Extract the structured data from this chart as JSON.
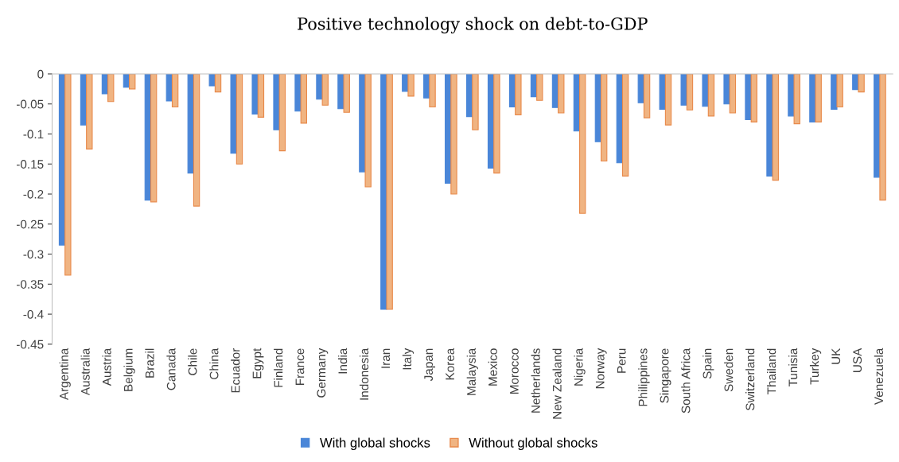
{
  "chart_data": {
    "type": "bar",
    "title": "Positive technology shock on debt-to-GDP",
    "categories": [
      "Argentina",
      "Australia",
      "Austria",
      "Belgium",
      "Brazil",
      "Canada",
      "Chile",
      "China",
      "Ecuador",
      "Egypt",
      "Finland",
      "France",
      "Germany",
      "India",
      "Indonesia",
      "Iran",
      "Italy",
      "Japan",
      "Korea",
      "Malaysia",
      "Mexico",
      "Morocco",
      "Netherlands",
      "New Zealand",
      "Nigeria",
      "Norway",
      "Peru",
      "Philippines",
      "Singapore",
      "South Africa",
      "Spain",
      "Sweden",
      "Switzerland",
      "Thailand",
      "Tunisia",
      "Turkey",
      "UK",
      "USA",
      "Venezuela"
    ],
    "series": [
      {
        "name": "With global shocks",
        "color": "#4a86d8",
        "values": [
          -0.285,
          -0.085,
          -0.033,
          -0.022,
          -0.21,
          -0.045,
          -0.165,
          -0.02,
          -0.132,
          -0.067,
          -0.093,
          -0.062,
          -0.042,
          -0.058,
          -0.163,
          -0.392,
          -0.029,
          -0.04,
          -0.182,
          -0.071,
          -0.157,
          -0.055,
          -0.038,
          -0.056,
          -0.095,
          -0.113,
          -0.148,
          -0.048,
          -0.059,
          -0.052,
          -0.054,
          -0.05,
          -0.076,
          -0.17,
          -0.07,
          -0.08,
          -0.059,
          -0.026,
          -0.172
        ]
      },
      {
        "name": "Without global shocks",
        "color": "#f0b482",
        "values": [
          -0.335,
          -0.125,
          -0.046,
          -0.025,
          -0.213,
          -0.055,
          -0.22,
          -0.03,
          -0.15,
          -0.072,
          -0.128,
          -0.082,
          -0.052,
          -0.064,
          -0.188,
          -0.392,
          -0.037,
          -0.055,
          -0.2,
          -0.093,
          -0.165,
          -0.068,
          -0.044,
          -0.065,
          -0.232,
          -0.145,
          -0.17,
          -0.073,
          -0.085,
          -0.06,
          -0.07,
          -0.065,
          -0.08,
          -0.177,
          -0.083,
          -0.08,
          -0.055,
          -0.03,
          -0.21
        ]
      }
    ],
    "ylim": [
      -0.45,
      0
    ],
    "yticks": [
      {
        "value": -0.45,
        "label": "-0.45"
      },
      {
        "value": -0.4,
        "label": "-0.4"
      },
      {
        "value": -0.35,
        "label": "-0.35"
      },
      {
        "value": -0.3,
        "label": "-0.3"
      },
      {
        "value": -0.25,
        "label": "-0.25"
      },
      {
        "value": -0.2,
        "label": "-0.2"
      },
      {
        "value": -0.15,
        "label": "-0.15"
      },
      {
        "value": -0.1,
        "label": "-0.1"
      },
      {
        "value": -0.05,
        "label": "-0.05"
      },
      0
    ],
    "grid": false,
    "legend": "bottom"
  }
}
